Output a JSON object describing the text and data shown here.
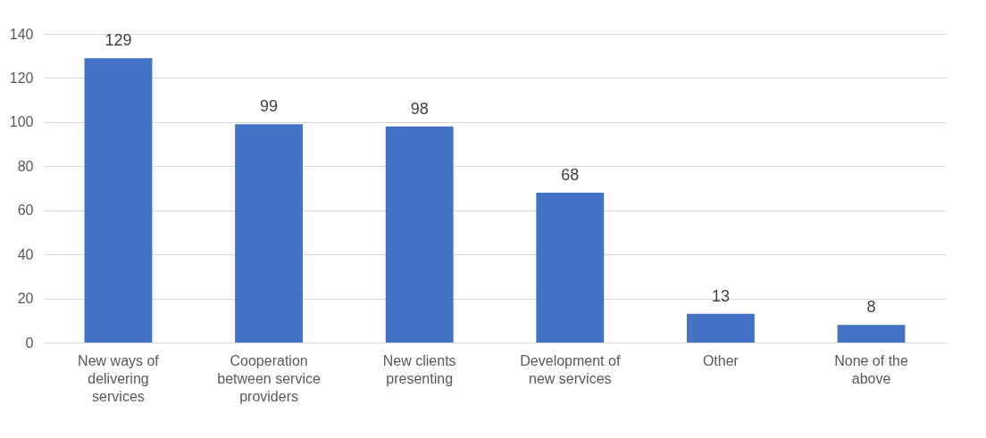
{
  "chart_data": {
    "type": "bar",
    "categories": [
      "New ways of delivering services",
      "Cooperation between service providers",
      "New clients presenting",
      "Development of new services",
      "Other",
      "None of the above"
    ],
    "values": [
      129,
      99,
      98,
      68,
      13,
      8
    ],
    "color": "#4472c4",
    "ylim": [
      0,
      140
    ],
    "yticks": [
      0,
      20,
      40,
      60,
      80,
      100,
      120,
      140
    ],
    "grid": "y",
    "data_labels": true
  }
}
